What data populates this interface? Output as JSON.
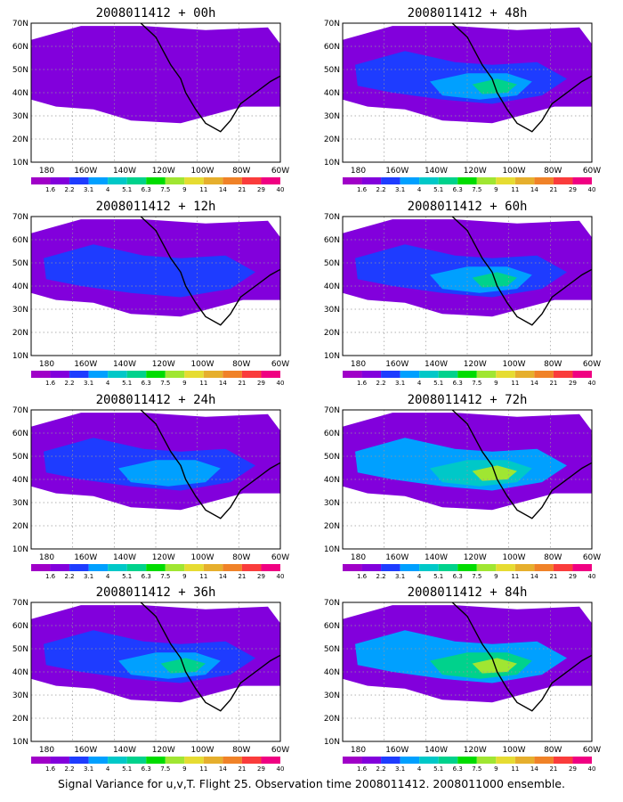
{
  "figure": {
    "caption": "Signal Variance for u,v,T. Flight 25. Observation time 2008011412. 2008011000 ensemble."
  },
  "colorbar": {
    "labels": [
      "1.6",
      "2.2",
      "3.1",
      "4",
      "5.1",
      "6.3",
      "7.5",
      "9",
      "11",
      "14",
      "21",
      "29",
      "40"
    ],
    "colors": [
      "#a000c8",
      "#8200dc",
      "#1e3cff",
      "#00a0ff",
      "#00c8c8",
      "#00d28c",
      "#00dc00",
      "#a0e632",
      "#e6dc32",
      "#e6af2d",
      "#f08228",
      "#fa3c3c",
      "#f00082"
    ]
  },
  "axes": {
    "lat_labels": [
      "70N",
      "60N",
      "50N",
      "40N",
      "30N",
      "20N",
      "10N"
    ],
    "lon_labels": [
      "180",
      "160W",
      "140W",
      "120W",
      "100W",
      "80W",
      "60W"
    ]
  },
  "panels": [
    {
      "id": "00h",
      "title": "2008011412 + 00h",
      "levels": [
        1,
        0,
        0,
        0
      ]
    },
    {
      "id": "48h",
      "title": "2008011412 + 48h",
      "levels": [
        1,
        2,
        3,
        5
      ]
    },
    {
      "id": "12h",
      "title": "2008011412 + 12h",
      "levels": [
        1,
        2,
        0,
        0
      ]
    },
    {
      "id": "60h",
      "title": "2008011412 + 60h",
      "levels": [
        1,
        2,
        3,
        5
      ]
    },
    {
      "id": "24h",
      "title": "2008011412 + 24h",
      "levels": [
        1,
        2,
        3,
        0
      ]
    },
    {
      "id": "72h",
      "title": "2008011412 + 72h",
      "levels": [
        1,
        3,
        4,
        7
      ]
    },
    {
      "id": "36h",
      "title": "2008011412 + 36h",
      "levels": [
        1,
        2,
        3,
        5
      ]
    },
    {
      "id": "84h",
      "title": "2008011412 + 84h",
      "levels": [
        1,
        3,
        5,
        7
      ]
    }
  ]
}
